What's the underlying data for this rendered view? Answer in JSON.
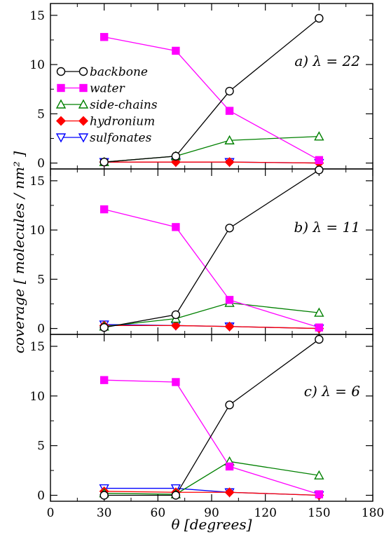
{
  "chart_data": [
    {
      "type": "line",
      "panel_label": "a) λ = 22",
      "x": [
        30,
        70,
        100,
        150
      ],
      "xlim": [
        0,
        180
      ],
      "ylim": [
        -0.6,
        16.2
      ],
      "yticks": [
        0,
        5,
        10,
        15
      ],
      "show_legend": true,
      "legend_position": "upper-left",
      "series": [
        {
          "name": "backbone",
          "values": [
            0.1,
            0.7,
            7.3,
            14.7
          ]
        },
        {
          "name": "water",
          "values": [
            12.8,
            11.4,
            5.3,
            0.3
          ]
        },
        {
          "name": "side-chains",
          "values": [
            0.1,
            0.7,
            2.3,
            2.7
          ]
        },
        {
          "name": "hydronium",
          "values": [
            0.1,
            0.1,
            0.1,
            0.0
          ]
        },
        {
          "name": "sulfonates",
          "values": [
            0.1,
            0.1,
            0.1,
            0.0
          ]
        }
      ]
    },
    {
      "type": "line",
      "panel_label": "b) λ = 11",
      "x": [
        30,
        70,
        100,
        150
      ],
      "xlim": [
        0,
        180
      ],
      "ylim": [
        -0.6,
        16.2
      ],
      "yticks": [
        0,
        5,
        10,
        15
      ],
      "show_legend": false,
      "series": [
        {
          "name": "backbone",
          "values": [
            0.1,
            1.4,
            10.2,
            16.1
          ]
        },
        {
          "name": "water",
          "values": [
            12.1,
            10.3,
            2.9,
            0.1
          ]
        },
        {
          "name": "side-chains",
          "values": [
            0.2,
            1.0,
            2.6,
            1.6
          ]
        },
        {
          "name": "hydronium",
          "values": [
            0.3,
            0.3,
            0.2,
            0.0
          ]
        },
        {
          "name": "sulfonates",
          "values": [
            0.4,
            0.3,
            0.2,
            0.0
          ]
        }
      ]
    },
    {
      "type": "line",
      "panel_label": "c) λ = 6",
      "x": [
        30,
        70,
        100,
        150
      ],
      "xlim": [
        0,
        180
      ],
      "ylim": [
        -0.6,
        16.2
      ],
      "yticks": [
        0,
        5,
        10,
        15
      ],
      "show_legend": false,
      "series": [
        {
          "name": "backbone",
          "values": [
            0.0,
            0.0,
            9.1,
            15.7
          ]
        },
        {
          "name": "water",
          "values": [
            11.6,
            11.4,
            2.9,
            0.1
          ]
        },
        {
          "name": "side-chains",
          "values": [
            0.2,
            0.1,
            3.4,
            2.0
          ]
        },
        {
          "name": "hydronium",
          "values": [
            0.4,
            0.3,
            0.3,
            0.0
          ]
        },
        {
          "name": "sulfonates",
          "values": [
            0.7,
            0.7,
            0.3,
            0.0
          ]
        }
      ]
    }
  ],
  "series_styles": [
    {
      "name": "backbone",
      "color": "#000000",
      "marker": "circle",
      "filled": false
    },
    {
      "name": "water",
      "color": "#ff00ff",
      "marker": "square",
      "filled": true
    },
    {
      "name": "side-chains",
      "color": "#008000",
      "marker": "triangle-up",
      "filled": false
    },
    {
      "name": "hydronium",
      "color": "#ff0000",
      "marker": "diamond",
      "filled": true
    },
    {
      "name": "sulfonates",
      "color": "#0000ff",
      "marker": "triangle-down",
      "filled": false
    }
  ],
  "xticks": [
    0,
    30,
    60,
    90,
    120,
    150,
    180
  ],
  "xlabel": "θ [degrees]",
  "ylabel": "coverage [ molecules / nm² ]"
}
